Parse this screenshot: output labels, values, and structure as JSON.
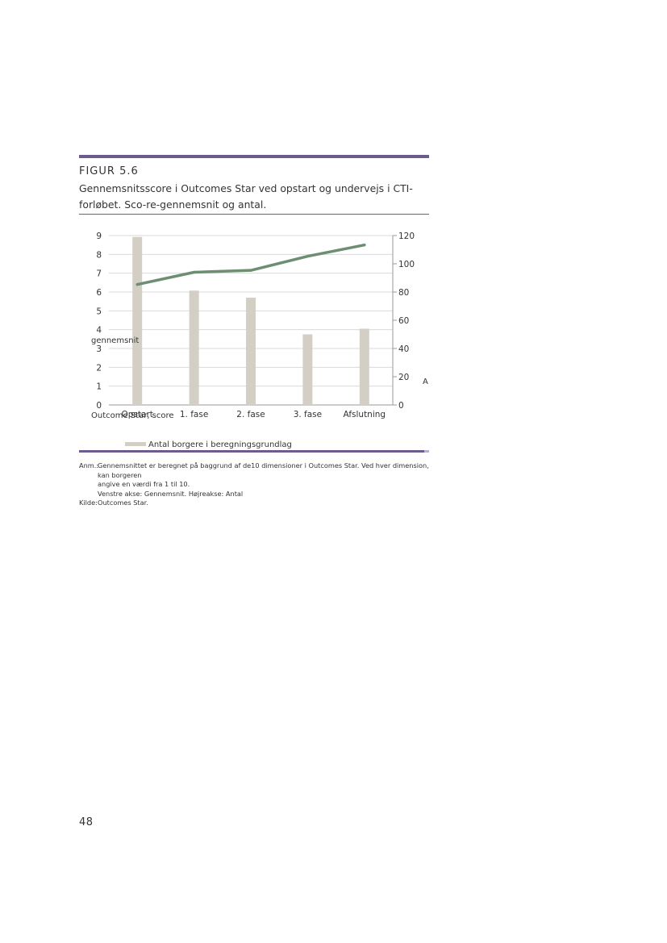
{
  "figure": {
    "label": "FIGUR 5.6",
    "title": "Gennemsnitsscore i Outcomes Star ved opstart og undervejs i CTI-forløbet. Sco-re-gennemsnit og antal."
  },
  "chart_data": {
    "type": "bar",
    "categories": [
      "Opstart",
      "1. fase",
      "2. fase",
      "3. fase",
      "Afslutning"
    ],
    "series": [
      {
        "name": "Antal borgere i beregningsgrundlag",
        "type": "bar",
        "axis": "right",
        "values": [
          119,
          81,
          76,
          50,
          54
        ],
        "color": "#d3cfc5"
      },
      {
        "name": "Outcome Star, score",
        "type": "line",
        "axis": "left",
        "values": [
          6.4,
          7.05,
          7.15,
          7.9,
          8.5
        ],
        "color": "#6e8e72"
      }
    ],
    "ylabel": "gennemsnit",
    "y2label": "A",
    "ylim": [
      0,
      9
    ],
    "y2lim": [
      0,
      120
    ],
    "yticks": [
      "0",
      "1",
      "2",
      "3",
      "4",
      "5",
      "6",
      "7",
      "8",
      "9"
    ],
    "y2ticks": [
      "0",
      "20",
      "40",
      "60",
      "80",
      "100",
      "120"
    ],
    "grid": true,
    "legend": "bottom"
  },
  "notes": {
    "anm_key": "Anm.:",
    "anm_lines": [
      "Gennemsnittet er beregnet på baggrund af de10 dimensioner i Outcomes Star. Ved hver dimension, kan borgeren",
      "angive en værdi fra 1 til 10.",
      "Venstre akse: Gennemsnit. Højreakse: Antal"
    ],
    "kilde_key": "Kilde:",
    "kilde_text": "Outcomes Star."
  },
  "page_number": "48"
}
